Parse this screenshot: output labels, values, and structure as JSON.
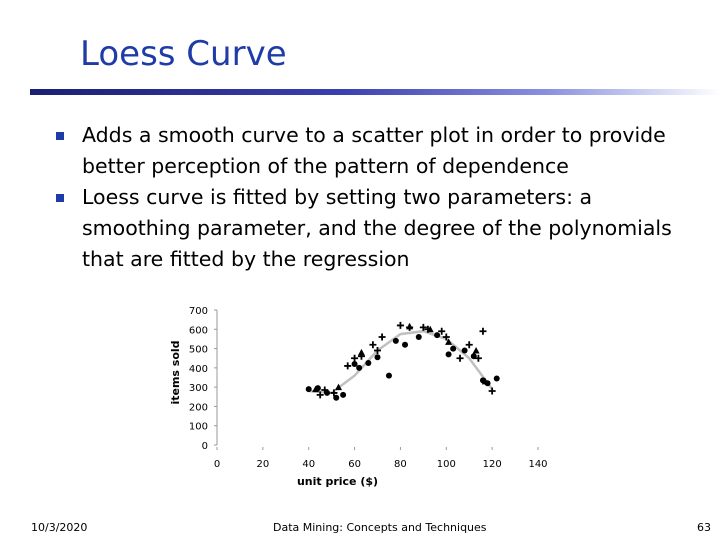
{
  "slide": {
    "title": "Loess Curve",
    "bullets": [
      "Adds a smooth curve to a scatter plot in order to provide better perception of the pattern of dependence",
      "Loess curve is fitted by setting two parameters: a smoothing parameter, and the degree of the polynomials that are fitted by the regression"
    ],
    "bullet_icon": "square-bullet-icon",
    "accent_color": "#1f3ba8"
  },
  "footer": {
    "date": "10/3/2020",
    "center": "Data Mining: Concepts and Techniques",
    "page": "63"
  },
  "chart_data": {
    "type": "scatter",
    "xlabel": "unit price ($)",
    "ylabel": "items sold",
    "xlim": [
      0,
      140
    ],
    "ylim": [
      0,
      700
    ],
    "xticks": [
      0,
      20,
      40,
      60,
      80,
      100,
      120,
      140
    ],
    "yticks": [
      0,
      100,
      200,
      300,
      400,
      500,
      600,
      700
    ],
    "grid": false,
    "series": [
      {
        "marker": "circle",
        "color": "#000000",
        "points": [
          [
            40,
            290
          ],
          [
            44,
            295
          ],
          [
            48,
            270
          ],
          [
            52,
            245
          ],
          [
            55,
            260
          ],
          [
            60,
            420
          ],
          [
            62,
            400
          ],
          [
            66,
            425
          ],
          [
            70,
            455
          ],
          [
            75,
            360
          ],
          [
            78,
            540
          ],
          [
            82,
            520
          ],
          [
            88,
            560
          ],
          [
            96,
            570
          ],
          [
            101,
            470
          ],
          [
            103,
            500
          ],
          [
            108,
            490
          ],
          [
            112,
            460
          ],
          [
            116,
            335
          ],
          [
            118,
            320
          ],
          [
            122,
            345
          ]
        ]
      },
      {
        "marker": "plus",
        "color": "#000000",
        "points": [
          [
            45,
            260
          ],
          [
            47,
            285
          ],
          [
            51,
            270
          ],
          [
            57,
            410
          ],
          [
            60,
            450
          ],
          [
            63,
            460
          ],
          [
            68,
            520
          ],
          [
            70,
            490
          ],
          [
            72,
            560
          ],
          [
            80,
            620
          ],
          [
            84,
            610
          ],
          [
            90,
            610
          ],
          [
            92,
            600
          ],
          [
            98,
            590
          ],
          [
            100,
            560
          ],
          [
            106,
            450
          ],
          [
            110,
            520
          ],
          [
            114,
            450
          ],
          [
            116,
            590
          ],
          [
            120,
            280
          ]
        ]
      },
      {
        "marker": "triangle",
        "color": "#000000",
        "points": [
          [
            43,
            290
          ],
          [
            53,
            300
          ],
          [
            63,
            480
          ],
          [
            84,
            615
          ],
          [
            93,
            600
          ],
          [
            101,
            535
          ],
          [
            113,
            490
          ],
          [
            117,
            330
          ]
        ]
      },
      {
        "name": "",
        "type": "line",
        "color": "#c0c0c0",
        "points": [
          [
            40,
            280
          ],
          [
            50,
            270
          ],
          [
            60,
            360
          ],
          [
            70,
            490
          ],
          [
            80,
            575
          ],
          [
            90,
            590
          ],
          [
            100,
            550
          ],
          [
            110,
            450
          ],
          [
            120,
            290
          ]
        ]
      }
    ]
  }
}
